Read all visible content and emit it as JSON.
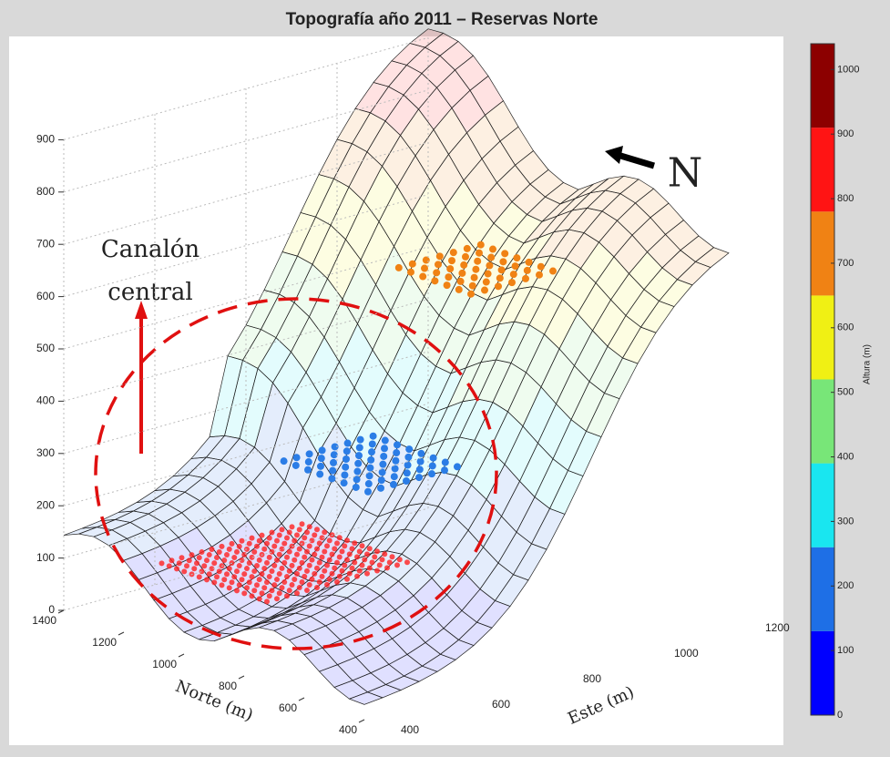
{
  "chart_data": {
    "type": "surface3d",
    "title": "Topografía año 2011 – Reservas Norte",
    "zlim": [
      0,
      900
    ],
    "zticks": [
      0,
      100,
      200,
      300,
      400,
      500,
      600,
      700,
      800,
      900
    ],
    "x_label": "Este (m)",
    "xlim": [
      400,
      1200
    ],
    "xticks": [
      400,
      600,
      800,
      1000,
      1200
    ],
    "y_label": "Norte (m)",
    "ylim": [
      400,
      1400
    ],
    "yticks": [
      400,
      600,
      800,
      1000,
      1200,
      1400
    ],
    "colorbar": {
      "label": "Altura (m)",
      "lim": [
        0,
        1040
      ],
      "ticks": [
        0,
        100,
        200,
        300,
        400,
        500,
        600,
        700,
        800,
        900,
        1000
      ],
      "edges": [
        0,
        130,
        260,
        390,
        520,
        650,
        780,
        910,
        1040
      ],
      "colors": [
        "#0000ff",
        "#1e6fe6",
        "#19e6f0",
        "#78e678",
        "#f0f014",
        "#f08214",
        "#ff1414",
        "#8c0000"
      ]
    },
    "annotations": {
      "channel": [
        "Canalón",
        "central"
      ],
      "north": "N"
    }
  }
}
